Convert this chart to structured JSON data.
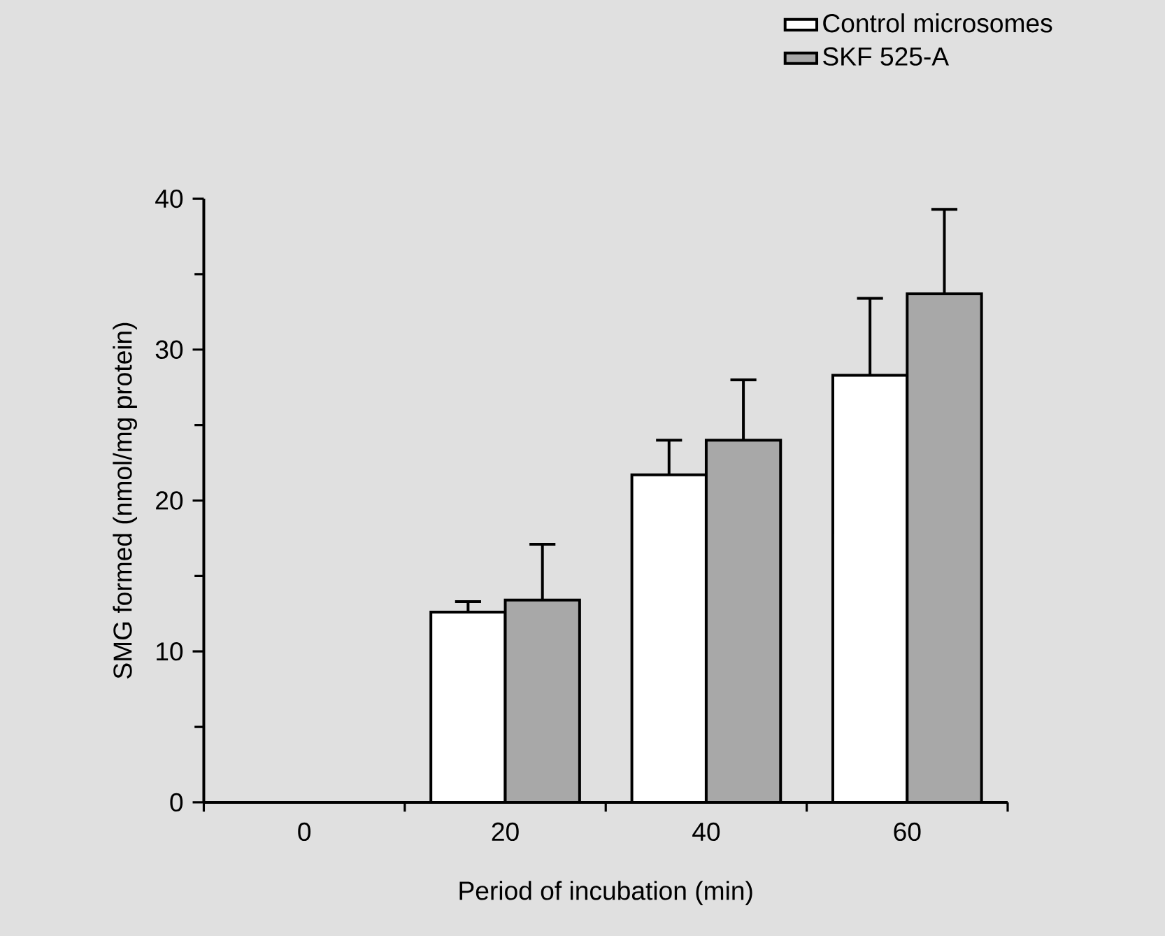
{
  "chart_data": {
    "type": "bar",
    "xlabel": "Period of incubation (min)",
    "ylabel": "SMG formed (nmol/mg protein)",
    "categories": [
      "0",
      "20",
      "40",
      "60"
    ],
    "series": [
      {
        "name": "Control microsomes",
        "color": "#ffffff",
        "values": [
          null,
          12.6,
          21.7,
          28.3
        ],
        "errors": [
          null,
          [
            12.6,
            13.3
          ],
          [
            21.7,
            24.0
          ],
          [
            28.3,
            33.4
          ]
        ]
      },
      {
        "name": "SKF 525-A",
        "color": "#a8a8a8",
        "values": [
          null,
          13.4,
          24.0,
          33.7
        ],
        "errors": [
          null,
          [
            13.4,
            17.1
          ],
          [
            24.0,
            28.0
          ],
          [
            33.7,
            39.3
          ]
        ]
      }
    ],
    "ylim": [
      0,
      40
    ],
    "yticks": [
      0,
      10,
      20,
      30,
      40
    ],
    "legend": "top right",
    "grid": false
  }
}
